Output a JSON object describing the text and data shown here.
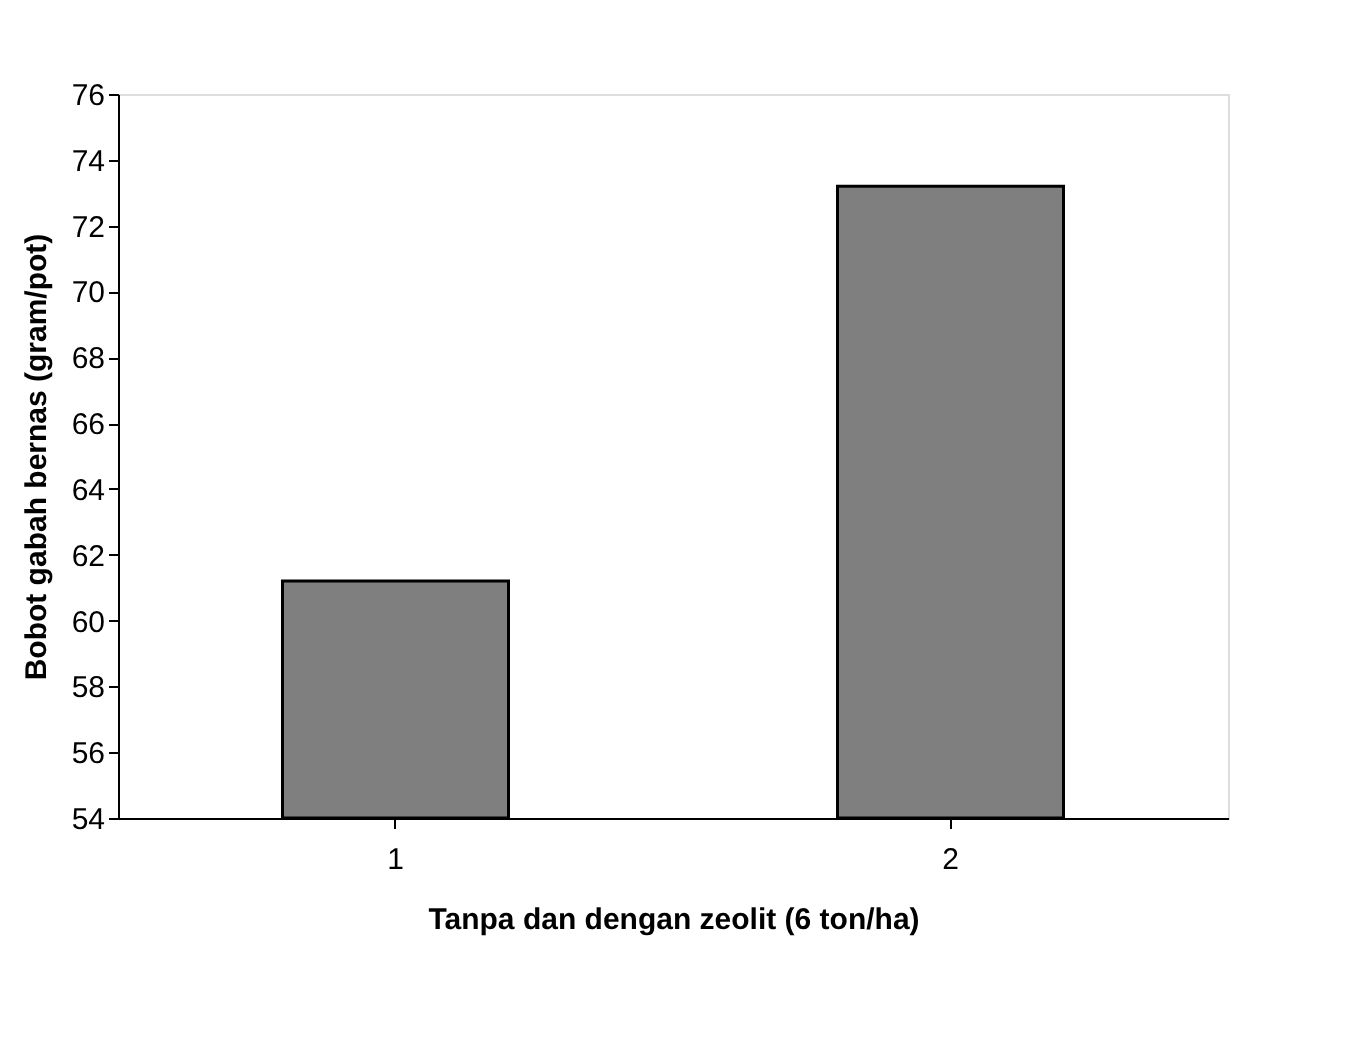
{
  "chart_data": {
    "type": "bar",
    "xlabel": "Tanpa dan dengan zeolit (6 ton/ha)",
    "ylabel": "Bobot gabah bernas (gram/pot)",
    "categories": [
      "1",
      "2"
    ],
    "values": [
      61.2,
      73.2
    ],
    "color": "#7f7f7f",
    "ylim": [
      54,
      76
    ],
    "yticks": [
      54,
      56,
      58,
      60,
      62,
      64,
      66,
      68,
      70,
      72,
      74,
      76
    ],
    "grid": false
  }
}
